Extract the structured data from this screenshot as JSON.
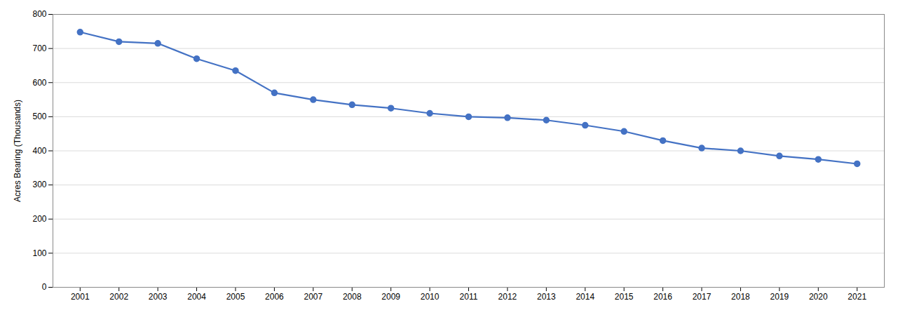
{
  "chart_data": {
    "type": "line",
    "x": [
      2001,
      2002,
      2003,
      2004,
      2005,
      2006,
      2007,
      2008,
      2009,
      2010,
      2011,
      2012,
      2013,
      2014,
      2015,
      2016,
      2017,
      2018,
      2019,
      2020,
      2021
    ],
    "values": [
      748,
      720,
      715,
      670,
      635,
      570,
      550,
      535,
      525,
      510,
      500,
      497,
      490,
      475,
      457,
      430,
      408,
      400,
      385,
      375,
      362
    ],
    "color": "#4472C4",
    "marker": "o",
    "ylabel": "Acres Bearing (Thousands)",
    "xlim": [
      2000.3,
      2021.7
    ],
    "xticks": [
      2001,
      2002,
      2003,
      2004,
      2005,
      2006,
      2007,
      2008,
      2009,
      2010,
      2011,
      2012,
      2013,
      2014,
      2015,
      2016,
      2017,
      2018,
      2019,
      2020,
      2021
    ],
    "ylim": [
      0,
      800
    ],
    "yticks": [
      0,
      100,
      200,
      300,
      400,
      500,
      600,
      700,
      800
    ],
    "grid": true
  }
}
